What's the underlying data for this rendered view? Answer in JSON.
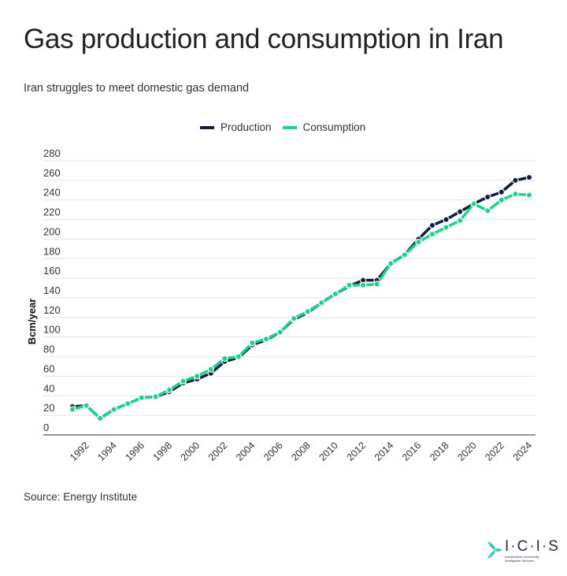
{
  "header": {
    "title": "Gas production and consumption in Iran",
    "subtitle": "Iran struggles to meet domestic gas demand"
  },
  "footer": {
    "source": "Source: Energy Institute"
  },
  "logo": {
    "name": "ICIS",
    "text": "I·C·I·S",
    "tagline": "Independent Commodity Intelligence Services"
  },
  "colors": {
    "production": "#0d1f3c",
    "consumption": "#1fd08f",
    "grid": "#e3e3e3",
    "axis": "#555555"
  },
  "chart_data": {
    "type": "line",
    "title": "Gas production and consumption in Iran",
    "subtitle": "Iran struggles to meet domestic gas demand",
    "xlabel": "",
    "ylabel": "Bcm/year",
    "ylim": [
      0,
      280
    ],
    "yticks": [
      0,
      20,
      40,
      60,
      80,
      100,
      120,
      140,
      160,
      180,
      200,
      220,
      240,
      260,
      280
    ],
    "xticks": [
      "1992",
      "1994",
      "1996",
      "1998",
      "2000",
      "2002",
      "2004",
      "2006",
      "2008",
      "2010",
      "2012",
      "2014",
      "2016",
      "2018",
      "2020",
      "2022",
      "2024"
    ],
    "grid": true,
    "legend": "top-center",
    "x": [
      1991,
      1992,
      1993,
      1994,
      1995,
      1996,
      1997,
      1998,
      1999,
      2000,
      2001,
      2002,
      2003,
      2004,
      2005,
      2006,
      2007,
      2008,
      2009,
      2010,
      2011,
      2012,
      2013,
      2014,
      2015,
      2016,
      2017,
      2018,
      2019,
      2020,
      2021,
      2022,
      2023,
      2024
    ],
    "series": [
      {
        "name": "Production",
        "values": [
          29,
          30,
          17,
          26,
          32,
          38,
          39,
          44,
          53,
          57,
          63,
          75,
          79,
          92,
          97,
          105,
          118,
          125,
          135,
          144,
          152,
          158,
          158,
          175,
          184,
          200,
          214,
          220,
          228,
          236,
          243,
          248,
          260,
          263
        ]
      },
      {
        "name": "Consumption",
        "values": [
          26,
          30,
          17,
          26,
          32,
          38,
          39,
          46,
          55,
          60,
          67,
          78,
          80,
          94,
          98,
          105,
          119,
          126,
          135,
          144,
          153,
          153,
          154,
          175,
          184,
          197,
          205,
          212,
          219,
          236,
          229,
          240,
          246,
          245
        ]
      }
    ]
  }
}
